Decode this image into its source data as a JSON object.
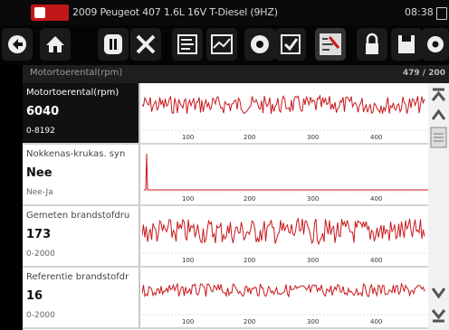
{
  "titlebar": {
    "vehicle_title": "2009 Peugeot 407 1.6L 16V T-Diesel  (9HZ)",
    "time": "08:38"
  },
  "toolbar": {
    "icons": [
      "back-icon",
      "home-icon",
      "pause-icon",
      "exit-icon",
      "pid-list-icon",
      "graph-view-icon",
      "zoom-icon",
      "select-icon",
      "sweep-icon",
      "lock-icon",
      "save-icon",
      "settings-icon"
    ]
  },
  "pid_header": {
    "name": "Motortoerental(rpm)",
    "count": "479 / 200"
  },
  "pids": [
    {
      "label": "Motortoerental(rpm)",
      "value": "6040",
      "range": "0-8192",
      "selected": true
    },
    {
      "label": "Nokkenas-krukas. syn",
      "value": "Nee",
      "range": "Nee-Ja",
      "selected": false
    },
    {
      "label": "Gemeten brandstofdru",
      "value": "173",
      "range": "0-2000",
      "selected": false
    },
    {
      "label": "Referentie brandstofdr",
      "value": "16",
      "range": "0-2000",
      "selected": false
    }
  ],
  "axis_ticks": [
    "100",
    "200",
    "300",
    "400"
  ],
  "colors": {
    "trace": "#c8181c",
    "brand": "#c01818"
  }
}
